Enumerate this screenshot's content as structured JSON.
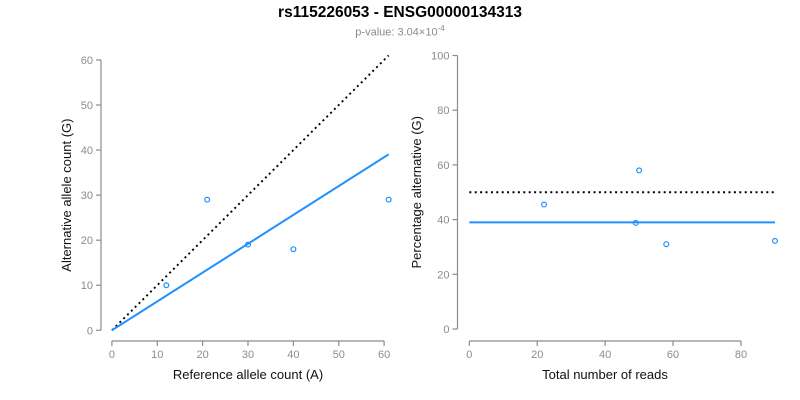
{
  "header": {
    "title": "rs115226053 - ENSG00000134313",
    "subtitle_base": "p-value: 3.04×10",
    "subtitle_exponent": "-4"
  },
  "colors": {
    "accent_blue": "#1E90FF",
    "dotted_black": "#000000",
    "axis_gray": "#8c8c8c",
    "subtitle_gray": "#8a8a8a"
  },
  "chart_data": [
    {
      "type": "scatter",
      "panel": "left",
      "xlabel": "Reference allele count (A)",
      "ylabel": "Alternative allele count (G)",
      "xlim": [
        0,
        60
      ],
      "ylim": [
        0,
        60
      ],
      "xticks": [
        0,
        10,
        20,
        30,
        40,
        50,
        60
      ],
      "yticks": [
        0,
        10,
        20,
        30,
        40,
        50,
        60
      ],
      "points": [
        [
          12,
          10
        ],
        [
          21,
          29
        ],
        [
          30,
          19
        ],
        [
          40,
          18
        ],
        [
          61,
          29
        ]
      ],
      "lines": [
        {
          "name": "identity-line",
          "style": "dotted",
          "color": "#000000",
          "x1": 0,
          "y1": 0,
          "x2": 61,
          "y2": 61
        },
        {
          "name": "regression-line",
          "style": "solid",
          "color": "#1E90FF",
          "x1": 0,
          "y1": 0,
          "x2": 61,
          "y2": 39.05
        }
      ],
      "legend": "off",
      "grid": "off"
    },
    {
      "type": "scatter",
      "panel": "right",
      "xlabel": "Total number of reads",
      "ylabel": "Percentage alternative (G)",
      "xlim": [
        0,
        90
      ],
      "ylim": [
        0,
        100
      ],
      "xticks": [
        0,
        20,
        40,
        60,
        80
      ],
      "yticks": [
        0,
        20,
        40,
        60,
        80,
        100
      ],
      "points": [
        [
          22,
          45.5
        ],
        [
          49,
          38.8
        ],
        [
          50,
          58
        ],
        [
          58,
          31
        ],
        [
          90,
          32.2
        ]
      ],
      "lines": [
        {
          "name": "expected-50pct-line",
          "style": "dotted",
          "color": "#000000",
          "x1": 0,
          "y1": 50,
          "x2": 90,
          "y2": 50
        },
        {
          "name": "mean-percentage-line",
          "style": "solid",
          "color": "#1E90FF",
          "x1": 0,
          "y1": 39,
          "x2": 90,
          "y2": 39
        }
      ],
      "legend": "off",
      "grid": "off"
    }
  ]
}
